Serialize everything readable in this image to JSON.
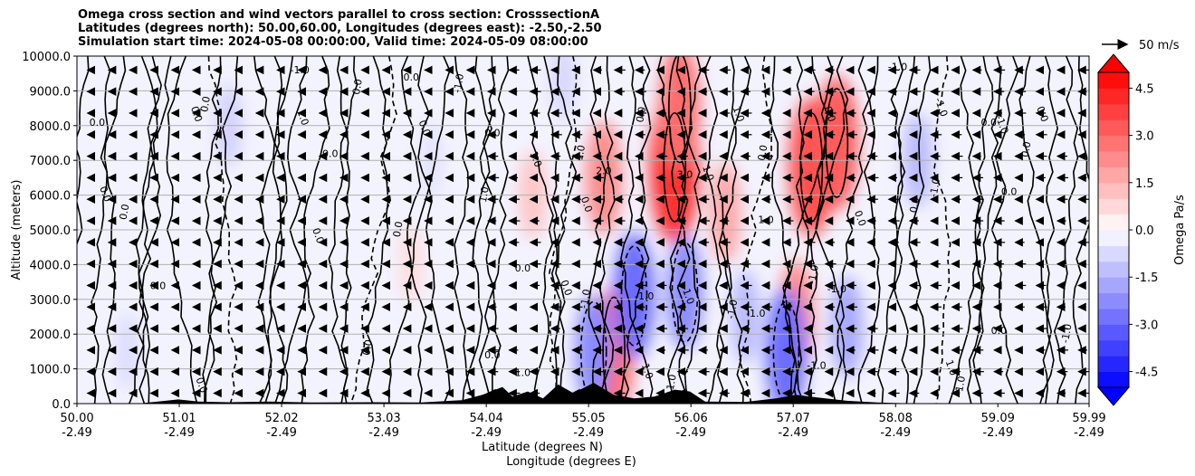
{
  "chart_data": {
    "type": "heatmap",
    "title_lines": [
      "Omega cross section and wind vectors parallel to cross section: CrosssectionA",
      "Latitudes (degrees north): 50.00,60.00, Longitudes (degrees east): -2.50,-2.50",
      "Simulation start time: 2024-05-08 00:00:00, Valid time: 2024-05-09 08:00:00"
    ],
    "ylabel": "Altitude (meters)",
    "xlabel": "Latitude (degrees N)",
    "xlabel2": "Longitude (degrees E)",
    "ylim": [
      0,
      10000
    ],
    "xlim": [
      50.0,
      59.99
    ],
    "y_ticks": [
      "0.0",
      "1000.0",
      "2000.0",
      "3000.0",
      "4000.0",
      "5000.0",
      "6000.0",
      "7000.0",
      "8000.0",
      "9000.0",
      "10000.0"
    ],
    "x_ticks": [
      {
        "lat": "50.00",
        "lon": "-2.49"
      },
      {
        "lat": "51.01",
        "lon": "-2.49"
      },
      {
        "lat": "52.02",
        "lon": "-2.49"
      },
      {
        "lat": "53.03",
        "lon": "-2.49"
      },
      {
        "lat": "54.04",
        "lon": "-2.49"
      },
      {
        "lat": "55.05",
        "lon": "-2.49"
      },
      {
        "lat": "56.06",
        "lon": "-2.49"
      },
      {
        "lat": "57.07",
        "lon": "-2.49"
      },
      {
        "lat": "58.08",
        "lon": "-2.49"
      },
      {
        "lat": "59.09",
        "lon": "-2.49"
      },
      {
        "lat": "59.99",
        "lon": "-2.49"
      }
    ],
    "grid": "horizontal",
    "colorbar": {
      "label": "Omega Pa/s",
      "range": [
        -5,
        5
      ],
      "ticks": [
        "-4.5",
        "-3.0",
        "-1.5",
        "0.0",
        "1.5",
        "3.0",
        "4.5"
      ],
      "extend": "both",
      "cmap": "bwr"
    },
    "quiver_key": "50 m/s",
    "omega_cells": [
      {
        "lat": 55.3,
        "alt": 1500,
        "omega": 2.5
      },
      {
        "lat": 55.2,
        "alt": 6500,
        "omega": 2.0
      },
      {
        "lat": 55.9,
        "alt": 6800,
        "omega": 3.5
      },
      {
        "lat": 55.95,
        "alt": 8500,
        "omega": 2.5
      },
      {
        "lat": 56.4,
        "alt": 5500,
        "omega": 1.5
      },
      {
        "lat": 57.25,
        "alt": 6800,
        "omega": 3.0
      },
      {
        "lat": 57.5,
        "alt": 7500,
        "omega": 2.8
      },
      {
        "lat": 57.1,
        "alt": 2500,
        "omega": 2.0
      },
      {
        "lat": 54.5,
        "alt": 6000,
        "omega": 1.0
      },
      {
        "lat": 53.3,
        "alt": 4000,
        "omega": 0.6
      },
      {
        "lat": 55.5,
        "alt": 3100,
        "omega": -2.5
      },
      {
        "lat": 56.0,
        "alt": 3200,
        "omega": -2.0
      },
      {
        "lat": 55.1,
        "alt": 1500,
        "omega": -2.0
      },
      {
        "lat": 56.6,
        "alt": 2500,
        "omega": -1.2
      },
      {
        "lat": 57.0,
        "alt": 1500,
        "omega": -2.5
      },
      {
        "lat": 57.6,
        "alt": 2200,
        "omega": -1.5
      },
      {
        "lat": 58.3,
        "alt": 7000,
        "omega": -1.2
      },
      {
        "lat": 51.5,
        "alt": 8000,
        "omega": -0.8
      },
      {
        "lat": 54.8,
        "alt": 9300,
        "omega": -0.7
      },
      {
        "lat": 53.5,
        "alt": 7000,
        "omega": -0.5
      },
      {
        "lat": 50.5,
        "alt": 1500,
        "omega": -0.6
      }
    ],
    "contour_labels": [
      {
        "text": "0.0",
        "lat": 50.2,
        "alt": 8000
      },
      {
        "text": "0.0",
        "lat": 50.25,
        "alt": 6000
      },
      {
        "text": "0.0",
        "lat": 50.5,
        "alt": 5500
      },
      {
        "text": "0.0",
        "lat": 50.8,
        "alt": 3300
      },
      {
        "text": "0.0",
        "lat": 51.15,
        "alt": 8300
      },
      {
        "text": "0.0",
        "lat": 51.3,
        "alt": 8600
      },
      {
        "text": "-1.0",
        "lat": 52.2,
        "alt": 9500
      },
      {
        "text": "1.0",
        "lat": 52.2,
        "alt": 8200
      },
      {
        "text": "0.0",
        "lat": 52.8,
        "alt": 9100
      },
      {
        "text": "0.0",
        "lat": 52.5,
        "alt": 7100
      },
      {
        "text": "0.0",
        "lat": 52.35,
        "alt": 4800
      },
      {
        "text": "0.0",
        "lat": 53.2,
        "alt": 5000
      },
      {
        "text": "0.0",
        "lat": 53.3,
        "alt": 9300
      },
      {
        "text": "0.0",
        "lat": 53.4,
        "alt": 7900
      },
      {
        "text": "-1.0",
        "lat": 53.8,
        "alt": 9200
      },
      {
        "text": "0.0",
        "lat": 54.1,
        "alt": 7700
      },
      {
        "text": "1.0",
        "lat": 54.5,
        "alt": 7000
      },
      {
        "text": "1.0",
        "lat": 54.05,
        "alt": 6000
      },
      {
        "text": "0.0",
        "lat": 54.4,
        "alt": 3800
      },
      {
        "text": "0.0",
        "lat": 54.8,
        "alt": 3300
      },
      {
        "text": "1.0",
        "lat": 55.0,
        "alt": 7200
      },
      {
        "text": "2.0",
        "lat": 55.2,
        "alt": 6600
      },
      {
        "text": "0.0",
        "lat": 55.0,
        "alt": 5700
      },
      {
        "text": "-1.0",
        "lat": 55.05,
        "alt": 3000
      },
      {
        "text": "-1.0",
        "lat": 55.6,
        "alt": 3000
      },
      {
        "text": "-1.0",
        "lat": 56.0,
        "alt": 3100
      },
      {
        "text": "0.0",
        "lat": 55.6,
        "alt": 8300
      },
      {
        "text": "3.0",
        "lat": 56.0,
        "alt": 6500
      },
      {
        "text": "1.0",
        "lat": 56.2,
        "alt": 6600
      },
      {
        "text": "0.0",
        "lat": 56.8,
        "alt": 7200
      },
      {
        "text": "1.0",
        "lat": 56.8,
        "alt": 5200
      },
      {
        "text": "1.0",
        "lat": 56.5,
        "alt": 8300
      },
      {
        "text": "-1.0",
        "lat": 56.5,
        "alt": 2700
      },
      {
        "text": "-1.0",
        "lat": 56.7,
        "alt": 2500
      },
      {
        "text": "0.0",
        "lat": 57.4,
        "alt": 8300
      },
      {
        "text": "-1.0",
        "lat": 57.3,
        "alt": 3700
      },
      {
        "text": "-1.0",
        "lat": 57.5,
        "alt": 3200
      },
      {
        "text": "0.0",
        "lat": 57.7,
        "alt": 5300
      },
      {
        "text": "0.0",
        "lat": 58.3,
        "alt": 5700
      },
      {
        "text": "-1.0",
        "lat": 58.1,
        "alt": 9600
      },
      {
        "text": "-1.0",
        "lat": 58.5,
        "alt": 8500
      },
      {
        "text": "-1.0",
        "lat": 58.5,
        "alt": 6200
      },
      {
        "text": "0.0",
        "lat": 59.0,
        "alt": 8000
      },
      {
        "text": "-1.0",
        "lat": 59.1,
        "alt": 8000
      },
      {
        "text": "0.0",
        "lat": 59.4,
        "alt": 7300
      },
      {
        "text": "0.0",
        "lat": 59.2,
        "alt": 6000
      },
      {
        "text": "0.0",
        "lat": 59.5,
        "alt": 8300
      },
      {
        "text": "-1.0",
        "lat": 59.8,
        "alt": 2000
      },
      {
        "text": "0.0",
        "lat": 59.1,
        "alt": 2000
      },
      {
        "text": "1.0",
        "lat": 58.6,
        "alt": 1000
      },
      {
        "text": "-1.0",
        "lat": 58.75,
        "alt": 500
      },
      {
        "text": "1.0",
        "lat": 54.4,
        "alt": 800
      },
      {
        "text": "1.0",
        "lat": 55.6,
        "alt": 900
      },
      {
        "text": "1.0",
        "lat": 55.9,
        "alt": 600
      },
      {
        "text": "-1.0",
        "lat": 57.3,
        "alt": 1000
      },
      {
        "text": "0.0",
        "lat": 51.2,
        "alt": 500
      },
      {
        "text": "0.0",
        "lat": 52.9,
        "alt": 1600
      },
      {
        "text": "0.0",
        "lat": 54.1,
        "alt": 1300
      }
    ],
    "terrain": [
      {
        "lat": 50.0,
        "alt": 0
      },
      {
        "lat": 50.6,
        "alt": 0
      },
      {
        "lat": 50.8,
        "alt": 60
      },
      {
        "lat": 51.0,
        "alt": 120
      },
      {
        "lat": 51.2,
        "alt": 60
      },
      {
        "lat": 51.5,
        "alt": 40
      },
      {
        "lat": 51.9,
        "alt": 60
      },
      {
        "lat": 52.3,
        "alt": 30
      },
      {
        "lat": 52.9,
        "alt": 40
      },
      {
        "lat": 53.4,
        "alt": 30
      },
      {
        "lat": 53.8,
        "alt": 100
      },
      {
        "lat": 54.0,
        "alt": 250
      },
      {
        "lat": 54.2,
        "alt": 480
      },
      {
        "lat": 54.3,
        "alt": 200
      },
      {
        "lat": 54.45,
        "alt": 350
      },
      {
        "lat": 54.6,
        "alt": 150
      },
      {
        "lat": 54.75,
        "alt": 550
      },
      {
        "lat": 54.9,
        "alt": 300
      },
      {
        "lat": 55.1,
        "alt": 600
      },
      {
        "lat": 55.3,
        "alt": 250
      },
      {
        "lat": 55.5,
        "alt": 150
      },
      {
        "lat": 55.7,
        "alt": 200
      },
      {
        "lat": 55.9,
        "alt": 400
      },
      {
        "lat": 56.05,
        "alt": 350
      },
      {
        "lat": 56.2,
        "alt": 60
      },
      {
        "lat": 56.6,
        "alt": 50
      },
      {
        "lat": 56.9,
        "alt": 150
      },
      {
        "lat": 57.1,
        "alt": 250
      },
      {
        "lat": 57.3,
        "alt": 180
      },
      {
        "lat": 57.6,
        "alt": 80
      },
      {
        "lat": 57.9,
        "alt": 30
      },
      {
        "lat": 58.3,
        "alt": 0
      },
      {
        "lat": 59.99,
        "alt": 0
      }
    ]
  }
}
